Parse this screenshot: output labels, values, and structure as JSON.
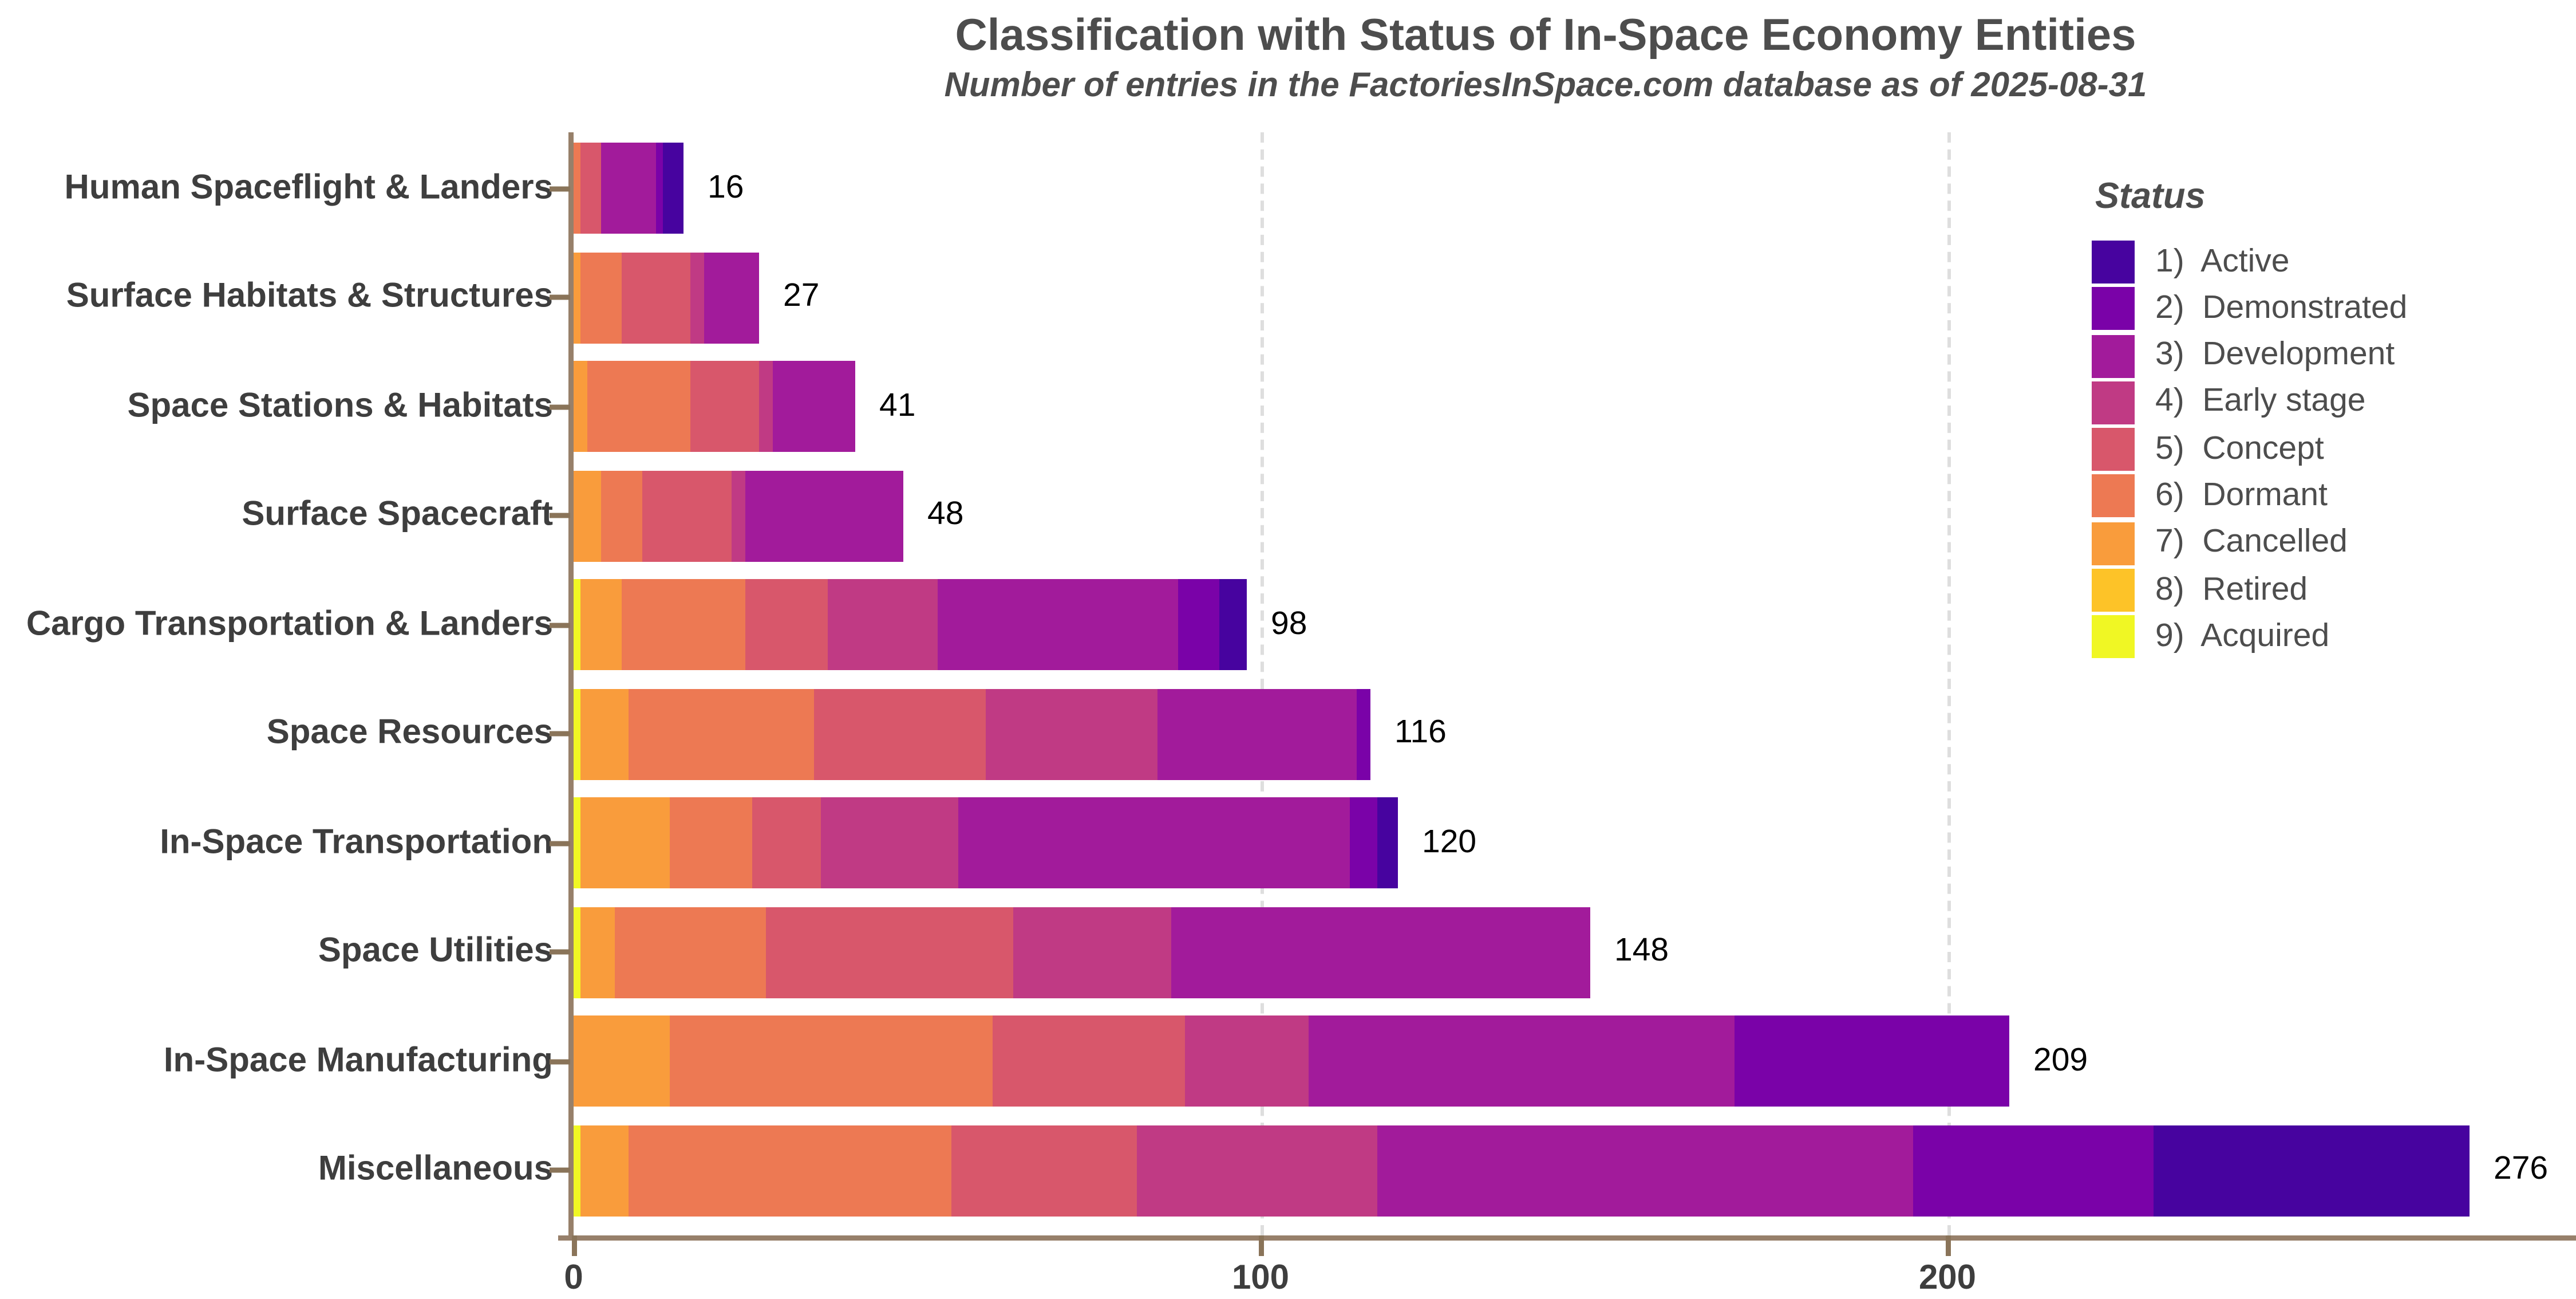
{
  "title": "Classification with Status of In-Space Economy Entities",
  "subtitle": "Number of entries in the FactoriesInSpace.com database as of 2025-08-31",
  "legend": {
    "title": "Status",
    "items": [
      "1)  Active",
      "2)  Demonstrated",
      "3)  Development",
      "4)  Early stage",
      "5)  Concept",
      "6)  Dormant",
      "7)  Cancelled",
      "8)  Retired",
      "9)  Acquired"
    ]
  },
  "x_axis": {
    "ticks": [
      0,
      100,
      200
    ]
  },
  "chart_data": {
    "type": "bar",
    "orientation": "horizontal-stacked",
    "title": "Classification with Status of In-Space Economy Entities",
    "subtitle": "Number of entries in the FactoriesInSpace.com database as of 2025-08-31",
    "categories": [
      "Human Spaceflight & Landers",
      "Surface Habitats & Structures",
      "Space Stations & Habitats",
      "Surface Spacecraft",
      "Cargo Transportation & Landers",
      "Space Resources",
      "In-Space Transportation",
      "Space Utilities",
      "In-Space Manufacturing",
      "Miscellaneous"
    ],
    "totals": [
      16,
      27,
      41,
      48,
      98,
      116,
      120,
      148,
      209,
      276
    ],
    "series": [
      {
        "name": "Active",
        "color": "#47039F",
        "values": [
          3,
          0,
          0,
          0,
          4,
          0,
          3,
          0,
          0,
          46
        ]
      },
      {
        "name": "Demonstrated",
        "color": "#7A02A8",
        "values": [
          1,
          0,
          0,
          0,
          6,
          2,
          4,
          0,
          40,
          35
        ]
      },
      {
        "name": "Development",
        "color": "#A21B9B",
        "values": [
          8,
          8,
          12,
          23,
          35,
          29,
          57,
          61,
          62,
          78
        ]
      },
      {
        "name": "Early stage",
        "color": "#C03A84",
        "values": [
          0,
          2,
          2,
          2,
          16,
          25,
          20,
          23,
          18,
          35
        ]
      },
      {
        "name": "Concept",
        "color": "#D8576B",
        "values": [
          3,
          10,
          10,
          13,
          12,
          25,
          10,
          36,
          28,
          27
        ]
      },
      {
        "name": "Dormant",
        "color": "#ED7953",
        "values": [
          1,
          6,
          15,
          6,
          18,
          27,
          12,
          22,
          47,
          47
        ]
      },
      {
        "name": "Cancelled",
        "color": "#F99C3C",
        "values": [
          0,
          1,
          2,
          4,
          6,
          7,
          13,
          5,
          14,
          7
        ]
      },
      {
        "name": "Retired",
        "color": "#FDC328",
        "values": [
          0,
          0,
          0,
          0,
          0,
          0,
          0,
          0,
          0,
          0
        ]
      },
      {
        "name": "Acquired",
        "color": "#F0F724",
        "values": [
          0,
          0,
          0,
          0,
          1,
          1,
          1,
          1,
          0,
          1
        ]
      }
    ],
    "stack_order_note": "segments drawn left-to-right from status 9 (Acquired) to status 1 (Active)",
    "xlabel": "",
    "ylabel": "",
    "xlim": [
      0,
      290
    ],
    "gridlines_x": [
      100,
      200
    ],
    "grid_style": "dashed-light-gray",
    "legend_position": "right-top"
  },
  "styles": {
    "background": "#FFFFFF",
    "axis_line_color": "#97806A",
    "tick_color": "#8A7459",
    "gridline_color": "#DEDEDE",
    "title_color": "#4D4D4D",
    "axis_label_color": "#3E3E3E",
    "value_label_color": "#000000",
    "legend_text_color": "#4D4D4D"
  }
}
